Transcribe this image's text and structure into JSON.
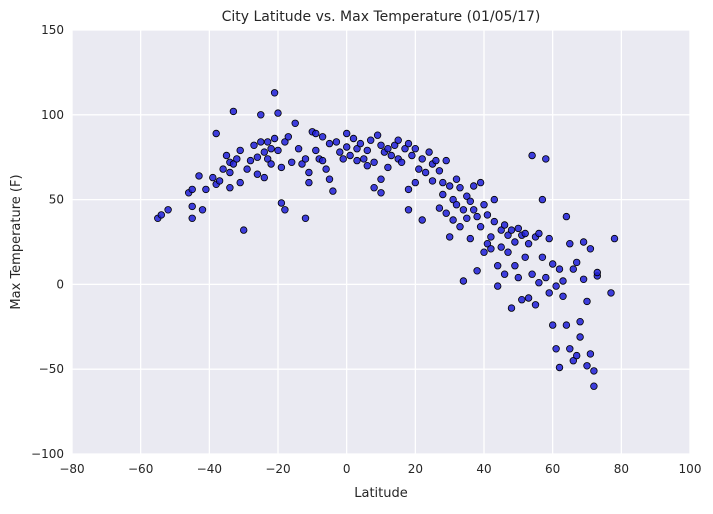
{
  "chart_data": {
    "type": "scatter",
    "title": "City Latitude vs. Max Temperature (01/05/17)",
    "xlabel": "Latitude",
    "ylabel": "Max Temperature (F)",
    "xlim": [
      -80,
      100
    ],
    "ylim": [
      -100,
      150
    ],
    "xticks": [
      -80,
      -60,
      -40,
      -20,
      0,
      20,
      40,
      60,
      80,
      100
    ],
    "yticks": [
      -100,
      -50,
      0,
      50,
      100,
      150
    ],
    "xtick_labels": [
      "−80",
      "−60",
      "−40",
      "−20",
      "0",
      "20",
      "40",
      "60",
      "80",
      "100"
    ],
    "ytick_labels": [
      "−100",
      "−50",
      "0",
      "50",
      "100",
      "150"
    ],
    "grid": true,
    "colors": {
      "plot_background": "#EAEAF2",
      "grid": "#FFFFFF",
      "marker_fill": "#1F1FD8",
      "marker_edge": "#000000"
    },
    "series": [
      {
        "points": [
          [
            -55,
            39
          ],
          [
            -54,
            41
          ],
          [
            -52,
            44
          ],
          [
            -46,
            54
          ],
          [
            -45,
            56
          ],
          [
            -45,
            46
          ],
          [
            -45,
            39
          ],
          [
            -43,
            64
          ],
          [
            -42,
            44
          ],
          [
            -41,
            56
          ],
          [
            -39,
            63
          ],
          [
            -38,
            89
          ],
          [
            -38,
            59
          ],
          [
            -37,
            61
          ],
          [
            -36,
            68
          ],
          [
            -35,
            76
          ],
          [
            -34,
            72
          ],
          [
            -34,
            66
          ],
          [
            -34,
            57
          ],
          [
            -33,
            102
          ],
          [
            -33,
            71
          ],
          [
            -32,
            74
          ],
          [
            -31,
            79
          ],
          [
            -31,
            60
          ],
          [
            -30,
            32
          ],
          [
            -29,
            68
          ],
          [
            -28,
            73
          ],
          [
            -27,
            82
          ],
          [
            -26,
            65
          ],
          [
            -26,
            75
          ],
          [
            -25,
            100
          ],
          [
            -25,
            84
          ],
          [
            -24,
            78
          ],
          [
            -24,
            63
          ],
          [
            -23,
            84
          ],
          [
            -23,
            74
          ],
          [
            -22,
            80
          ],
          [
            -22,
            71
          ],
          [
            -21,
            113
          ],
          [
            -21,
            86
          ],
          [
            -20,
            101
          ],
          [
            -20,
            79
          ],
          [
            -19,
            48
          ],
          [
            -19,
            69
          ],
          [
            -18,
            84
          ],
          [
            -18,
            44
          ],
          [
            -17,
            87
          ],
          [
            -16,
            72
          ],
          [
            -15,
            95
          ],
          [
            -14,
            80
          ],
          [
            -13,
            71
          ],
          [
            -12,
            39
          ],
          [
            -12,
            74
          ],
          [
            -11,
            66
          ],
          [
            -11,
            60
          ],
          [
            -10,
            90
          ],
          [
            -9,
            89
          ],
          [
            -9,
            79
          ],
          [
            -8,
            74
          ],
          [
            -7,
            87
          ],
          [
            -7,
            73
          ],
          [
            -6,
            68
          ],
          [
            -5,
            83
          ],
          [
            -5,
            62
          ],
          [
            -4,
            55
          ],
          [
            -3,
            84
          ],
          [
            -2,
            78
          ],
          [
            -1,
            74
          ],
          [
            0,
            89
          ],
          [
            0,
            81
          ],
          [
            1,
            76
          ],
          [
            2,
            86
          ],
          [
            3,
            73
          ],
          [
            3,
            80
          ],
          [
            4,
            83
          ],
          [
            5,
            74
          ],
          [
            6,
            79
          ],
          [
            6,
            70
          ],
          [
            7,
            85
          ],
          [
            8,
            57
          ],
          [
            8,
            72
          ],
          [
            9,
            88
          ],
          [
            10,
            82
          ],
          [
            10,
            62
          ],
          [
            10,
            54
          ],
          [
            11,
            78
          ],
          [
            12,
            80
          ],
          [
            12,
            69
          ],
          [
            13,
            76
          ],
          [
            14,
            82
          ],
          [
            15,
            85
          ],
          [
            15,
            74
          ],
          [
            16,
            72
          ],
          [
            17,
            80
          ],
          [
            18,
            83
          ],
          [
            18,
            44
          ],
          [
            18,
            56
          ],
          [
            19,
            76
          ],
          [
            20,
            80
          ],
          [
            20,
            60
          ],
          [
            21,
            68
          ],
          [
            22,
            74
          ],
          [
            22,
            38
          ],
          [
            23,
            66
          ],
          [
            24,
            78
          ],
          [
            25,
            61
          ],
          [
            25,
            71
          ],
          [
            26,
            73
          ],
          [
            27,
            67
          ],
          [
            27,
            45
          ],
          [
            28,
            60
          ],
          [
            28,
            53
          ],
          [
            29,
            73
          ],
          [
            29,
            42
          ],
          [
            30,
            28
          ],
          [
            30,
            58
          ],
          [
            31,
            50
          ],
          [
            31,
            38
          ],
          [
            32,
            47
          ],
          [
            32,
            62
          ],
          [
            33,
            57
          ],
          [
            33,
            34
          ],
          [
            34,
            44
          ],
          [
            34,
            2
          ],
          [
            35,
            52
          ],
          [
            35,
            39
          ],
          [
            36,
            49
          ],
          [
            36,
            27
          ],
          [
            37,
            58
          ],
          [
            37,
            44
          ],
          [
            38,
            40
          ],
          [
            38,
            8
          ],
          [
            39,
            60
          ],
          [
            39,
            34
          ],
          [
            40,
            47
          ],
          [
            40,
            19
          ],
          [
            41,
            41
          ],
          [
            41,
            24
          ],
          [
            42,
            28
          ],
          [
            42,
            21
          ],
          [
            43,
            37
          ],
          [
            43,
            50
          ],
          [
            44,
            11
          ],
          [
            44,
            -1
          ],
          [
            45,
            32
          ],
          [
            45,
            22
          ],
          [
            46,
            35
          ],
          [
            46,
            6
          ],
          [
            47,
            19
          ],
          [
            47,
            29
          ],
          [
            48,
            -14
          ],
          [
            48,
            32
          ],
          [
            49,
            25
          ],
          [
            49,
            11
          ],
          [
            50,
            33
          ],
          [
            50,
            4
          ],
          [
            51,
            29
          ],
          [
            51,
            -9
          ],
          [
            52,
            30
          ],
          [
            52,
            16
          ],
          [
            53,
            -8
          ],
          [
            53,
            24
          ],
          [
            54,
            76
          ],
          [
            54,
            6
          ],
          [
            55,
            28
          ],
          [
            55,
            -12
          ],
          [
            56,
            30
          ],
          [
            56,
            1
          ],
          [
            57,
            50
          ],
          [
            57,
            16
          ],
          [
            58,
            74
          ],
          [
            58,
            4
          ],
          [
            59,
            -5
          ],
          [
            59,
            27
          ],
          [
            60,
            -24
          ],
          [
            60,
            12
          ],
          [
            61,
            -38
          ],
          [
            61,
            -1
          ],
          [
            62,
            9
          ],
          [
            62,
            -49
          ],
          [
            63,
            2
          ],
          [
            63,
            -7
          ],
          [
            64,
            -24
          ],
          [
            64,
            40
          ],
          [
            65,
            -38
          ],
          [
            65,
            24
          ],
          [
            66,
            -45
          ],
          [
            66,
            9
          ],
          [
            67,
            -42
          ],
          [
            67,
            13
          ],
          [
            68,
            -31
          ],
          [
            68,
            -22
          ],
          [
            69,
            25
          ],
          [
            69,
            3
          ],
          [
            70,
            -10
          ],
          [
            70,
            -48
          ],
          [
            71,
            -41
          ],
          [
            71,
            21
          ],
          [
            72,
            -51
          ],
          [
            72,
            -60
          ],
          [
            73,
            5
          ],
          [
            73,
            7
          ],
          [
            77,
            -5
          ],
          [
            78,
            27
          ]
        ]
      }
    ]
  }
}
